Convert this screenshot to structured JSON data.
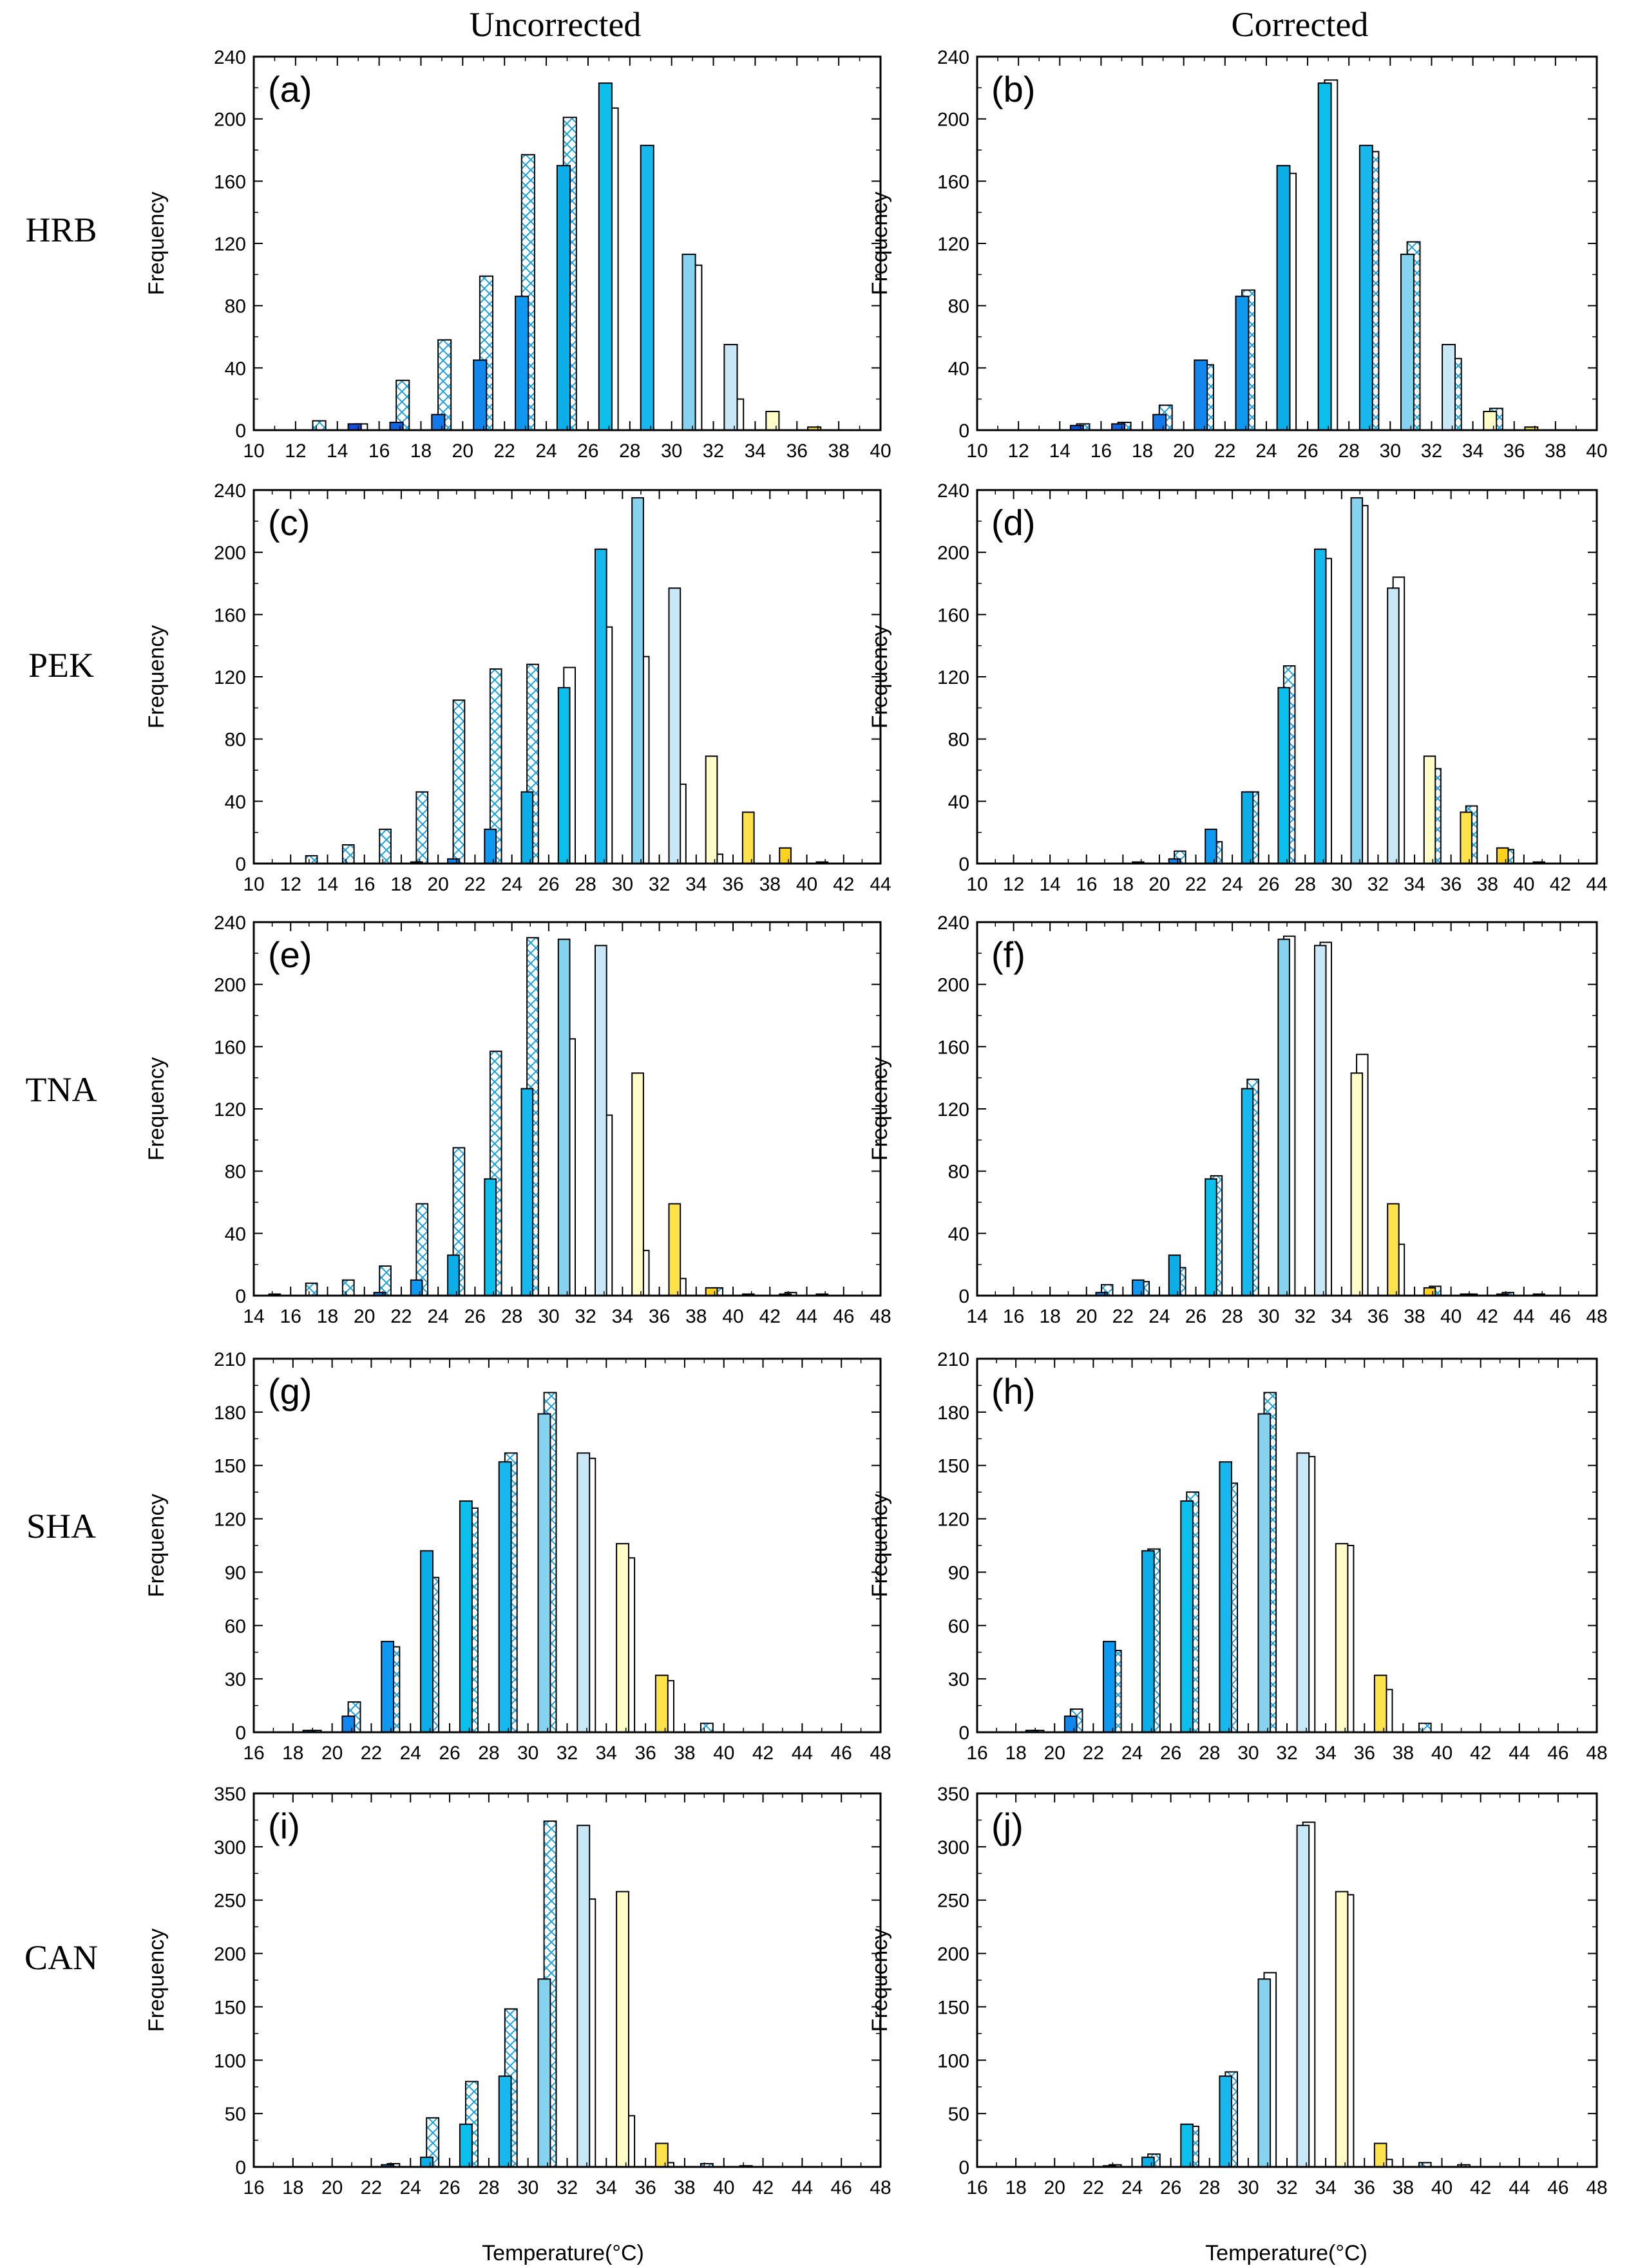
{
  "column_titles": [
    "Uncorrected",
    "Corrected"
  ],
  "row_labels": [
    "HRB",
    "PEK",
    "TNA",
    "SHA",
    "CAN"
  ],
  "ylabel": "Frequency",
  "xlabel": "Temperature(°C)",
  "colors": {
    "t10": "#0b2fd2",
    "t12": "#1c45dd",
    "t14": "#1150de",
    "t16": "#1565e3",
    "t18": "#1479ea",
    "t20": "#1186ec",
    "t22": "#0f98ef",
    "t24": "#0caee8",
    "t26": "#0cc0ed",
    "t28": "#16b8ee",
    "t30": "#86d3ef",
    "t32": "#c8e8f7",
    "t34": "#fffcc8",
    "t36": "#fde24a",
    "t38": "#fdd21f",
    "t40": "#fcc400",
    "t42": "#f9a100",
    "t44": "#f57a00",
    "t46": "#f04e00",
    "t48": "#e02000",
    "hatch": "#1a9fdd",
    "edge": "#000000"
  },
  "chart_data": [
    {
      "panel": "(a)",
      "station": "HRB",
      "column": "Uncorrected",
      "type": "bar",
      "xlim": [
        10,
        40
      ],
      "ylim": [
        0,
        240
      ],
      "xticks": [
        10,
        12,
        14,
        16,
        18,
        20,
        22,
        24,
        26,
        28,
        30,
        32,
        34,
        36,
        38,
        40
      ],
      "yticks": [
        0,
        40,
        80,
        120,
        160,
        200,
        240
      ],
      "centers": [
        11,
        13,
        15,
        17,
        19,
        21,
        23,
        25,
        27,
        29,
        31,
        33,
        35,
        37
      ],
      "observed": [
        0,
        0,
        4,
        5,
        10,
        45,
        86,
        170,
        223,
        183,
        113,
        55,
        12,
        2
      ],
      "model": [
        0,
        6,
        4,
        32,
        58,
        99,
        177,
        201,
        207,
        0,
        106,
        20,
        0,
        0
      ],
      "hatched": [
        false,
        true,
        false,
        true,
        true,
        true,
        true,
        true,
        false,
        false,
        false,
        false,
        false,
        false
      ]
    },
    {
      "panel": "(b)",
      "station": "HRB",
      "column": "Corrected",
      "type": "bar",
      "xlim": [
        10,
        40
      ],
      "ylim": [
        0,
        240
      ],
      "xticks": [
        10,
        12,
        14,
        16,
        18,
        20,
        22,
        24,
        26,
        28,
        30,
        32,
        34,
        36,
        38,
        40
      ],
      "yticks": [
        0,
        40,
        80,
        120,
        160,
        200,
        240
      ],
      "centers": [
        11,
        13,
        15,
        17,
        19,
        21,
        23,
        25,
        27,
        29,
        31,
        33,
        35,
        37
      ],
      "observed": [
        0,
        0,
        3,
        4,
        10,
        45,
        86,
        170,
        223,
        183,
        113,
        55,
        12,
        2
      ],
      "model": [
        0,
        0,
        4,
        5,
        16,
        42,
        90,
        165,
        225,
        179,
        121,
        46,
        14,
        0
      ],
      "hatched": [
        false,
        false,
        true,
        true,
        true,
        true,
        true,
        false,
        false,
        true,
        true,
        true,
        true,
        false
      ]
    },
    {
      "panel": "(c)",
      "station": "PEK",
      "column": "Uncorrected",
      "type": "bar",
      "xlim": [
        10,
        44
      ],
      "ylim": [
        0,
        240
      ],
      "xticks": [
        10,
        12,
        14,
        16,
        18,
        20,
        22,
        24,
        26,
        28,
        30,
        32,
        34,
        36,
        38,
        40,
        42,
        44
      ],
      "yticks": [
        0,
        40,
        80,
        120,
        160,
        200,
        240
      ],
      "centers": [
        11,
        13,
        15,
        17,
        19,
        21,
        23,
        25,
        27,
        29,
        31,
        33,
        35,
        37,
        39,
        41,
        43
      ],
      "observed": [
        0,
        0,
        0,
        0,
        1,
        3,
        22,
        46,
        113,
        202,
        235,
        177,
        69,
        33,
        10,
        1,
        0
      ],
      "model": [
        0,
        5,
        12,
        22,
        46,
        105,
        125,
        128,
        126,
        152,
        133,
        51,
        6,
        0,
        0,
        0,
        0
      ],
      "hatched": [
        false,
        true,
        true,
        true,
        true,
        true,
        true,
        true,
        false,
        false,
        false,
        false,
        false,
        false,
        false,
        false,
        false
      ]
    },
    {
      "panel": "(d)",
      "station": "PEK",
      "column": "Corrected",
      "type": "bar",
      "xlim": [
        10,
        44
      ],
      "ylim": [
        0,
        240
      ],
      "xticks": [
        10,
        12,
        14,
        16,
        18,
        20,
        22,
        24,
        26,
        28,
        30,
        32,
        34,
        36,
        38,
        40,
        42,
        44
      ],
      "yticks": [
        0,
        40,
        80,
        120,
        160,
        200,
        240
      ],
      "centers": [
        11,
        13,
        15,
        17,
        19,
        21,
        23,
        25,
        27,
        29,
        31,
        33,
        35,
        37,
        39,
        41,
        43
      ],
      "observed": [
        0,
        0,
        0,
        0,
        1,
        3,
        22,
        46,
        113,
        202,
        235,
        177,
        69,
        33,
        10,
        1,
        0
      ],
      "model": [
        0,
        0,
        0,
        0,
        0,
        8,
        14,
        46,
        127,
        196,
        230,
        184,
        61,
        37,
        9,
        0,
        0
      ],
      "hatched": [
        false,
        false,
        false,
        false,
        false,
        true,
        true,
        true,
        true,
        false,
        false,
        false,
        true,
        true,
        true,
        false,
        false
      ]
    },
    {
      "panel": "(e)",
      "station": "TNA",
      "column": "Uncorrected",
      "type": "bar",
      "xlim": [
        14,
        48
      ],
      "ylim": [
        0,
        240
      ],
      "xticks": [
        14,
        16,
        18,
        20,
        22,
        24,
        26,
        28,
        30,
        32,
        34,
        36,
        38,
        40,
        42,
        44,
        46,
        48
      ],
      "yticks": [
        0,
        40,
        80,
        120,
        160,
        200,
        240
      ],
      "centers": [
        15,
        17,
        19,
        21,
        23,
        25,
        27,
        29,
        31,
        33,
        35,
        37,
        39,
        41,
        43,
        45,
        47
      ],
      "observed": [
        0,
        0,
        0,
        2,
        10,
        26,
        75,
        133,
        229,
        225,
        143,
        59,
        5,
        1,
        1,
        1,
        0
      ],
      "model": [
        1,
        8,
        10,
        19,
        59,
        95,
        157,
        230,
        165,
        116,
        29,
        11,
        5,
        0,
        2,
        0,
        0
      ],
      "hatched": [
        false,
        true,
        true,
        true,
        true,
        true,
        true,
        true,
        false,
        false,
        false,
        false,
        true,
        false,
        true,
        false,
        false
      ]
    },
    {
      "panel": "(f)",
      "station": "TNA",
      "column": "Corrected",
      "type": "bar",
      "xlim": [
        14,
        48
      ],
      "ylim": [
        0,
        240
      ],
      "xticks": [
        14,
        16,
        18,
        20,
        22,
        24,
        26,
        28,
        30,
        32,
        34,
        36,
        38,
        40,
        42,
        44,
        46,
        48
      ],
      "yticks": [
        0,
        40,
        80,
        120,
        160,
        200,
        240
      ],
      "centers": [
        15,
        17,
        19,
        21,
        23,
        25,
        27,
        29,
        31,
        33,
        35,
        37,
        39,
        41,
        43,
        45,
        47
      ],
      "observed": [
        0,
        0,
        0,
        2,
        10,
        26,
        75,
        133,
        229,
        225,
        143,
        59,
        5,
        1,
        1,
        1,
        0
      ],
      "model": [
        0,
        0,
        0,
        7,
        9,
        18,
        77,
        139,
        231,
        227,
        155,
        33,
        6,
        1,
        2,
        0,
        0
      ],
      "hatched": [
        false,
        false,
        false,
        true,
        true,
        true,
        true,
        true,
        false,
        false,
        false,
        false,
        true,
        false,
        true,
        false,
        false
      ]
    },
    {
      "panel": "(g)",
      "station": "SHA",
      "column": "Uncorrected",
      "type": "bar",
      "xlim": [
        16,
        48
      ],
      "ylim": [
        0,
        210
      ],
      "xticks": [
        16,
        18,
        20,
        22,
        24,
        26,
        28,
        30,
        32,
        34,
        36,
        38,
        40,
        42,
        44,
        46,
        48
      ],
      "yticks": [
        0,
        30,
        60,
        90,
        120,
        150,
        180,
        210
      ],
      "centers": [
        19,
        21,
        23,
        25,
        27,
        29,
        31,
        33,
        35,
        37,
        39
      ],
      "observed": [
        1,
        9,
        51,
        102,
        130,
        152,
        179,
        157,
        106,
        32,
        0
      ],
      "model": [
        1,
        17,
        48,
        87,
        126,
        157,
        191,
        154,
        98,
        29,
        5
      ],
      "hatched": [
        false,
        true,
        true,
        true,
        true,
        true,
        true,
        false,
        false,
        false,
        true
      ]
    },
    {
      "panel": "(h)",
      "station": "SHA",
      "column": "Corrected",
      "type": "bar",
      "xlim": [
        16,
        48
      ],
      "ylim": [
        0,
        210
      ],
      "xticks": [
        16,
        18,
        20,
        22,
        24,
        26,
        28,
        30,
        32,
        34,
        36,
        38,
        40,
        42,
        44,
        46,
        48
      ],
      "yticks": [
        0,
        30,
        60,
        90,
        120,
        150,
        180,
        210
      ],
      "centers": [
        19,
        21,
        23,
        25,
        27,
        29,
        31,
        33,
        35,
        37,
        39
      ],
      "observed": [
        1,
        9,
        51,
        102,
        130,
        152,
        179,
        157,
        106,
        32,
        0
      ],
      "model": [
        1,
        13,
        46,
        103,
        135,
        140,
        191,
        155,
        105,
        24,
        5
      ],
      "hatched": [
        false,
        true,
        true,
        true,
        true,
        true,
        true,
        false,
        false,
        false,
        true
      ]
    },
    {
      "panel": "(i)",
      "station": "CAN",
      "column": "Uncorrected",
      "type": "bar",
      "xlim": [
        16,
        48
      ],
      "ylim": [
        0,
        350
      ],
      "xticks": [
        16,
        18,
        20,
        22,
        24,
        26,
        28,
        30,
        32,
        34,
        36,
        38,
        40,
        42,
        44,
        46,
        48
      ],
      "yticks": [
        0,
        50,
        100,
        150,
        200,
        250,
        300,
        350
      ],
      "centers": [
        23,
        25,
        27,
        29,
        31,
        33,
        35,
        37,
        39,
        41
      ],
      "observed": [
        2,
        9,
        40,
        85,
        176,
        320,
        258,
        22,
        0,
        0
      ],
      "model": [
        3,
        46,
        80,
        148,
        324,
        251,
        48,
        4,
        3,
        1
      ],
      "hatched": [
        true,
        true,
        true,
        true,
        true,
        false,
        false,
        false,
        true,
        true
      ]
    },
    {
      "panel": "(j)",
      "station": "CAN",
      "column": "Corrected",
      "type": "bar",
      "xlim": [
        16,
        48
      ],
      "ylim": [
        0,
        350
      ],
      "xticks": [
        16,
        18,
        20,
        22,
        24,
        26,
        28,
        30,
        32,
        34,
        36,
        38,
        40,
        42,
        44,
        46,
        48
      ],
      "yticks": [
        0,
        50,
        100,
        150,
        200,
        250,
        300,
        350
      ],
      "centers": [
        23,
        25,
        27,
        29,
        31,
        33,
        35,
        37,
        39,
        41
      ],
      "observed": [
        1,
        9,
        40,
        85,
        176,
        320,
        258,
        22,
        0,
        0
      ],
      "model": [
        2,
        12,
        38,
        89,
        182,
        323,
        255,
        7,
        4,
        2
      ],
      "hatched": [
        true,
        true,
        true,
        true,
        false,
        false,
        false,
        false,
        true,
        true
      ]
    }
  ]
}
